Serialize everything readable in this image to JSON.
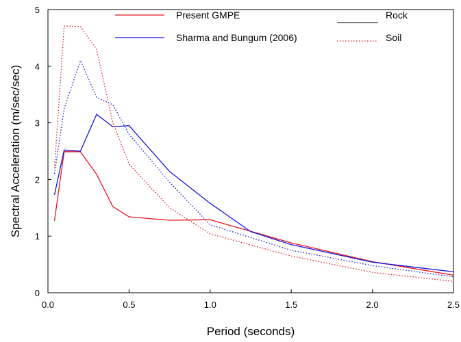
{
  "chart_data": {
    "type": "line",
    "xlabel": "Period (seconds)",
    "ylabel": "Spectral Acceleration (m/sec/sec)",
    "xlim": [
      0,
      2.5
    ],
    "ylim": [
      0,
      5
    ],
    "xticks": [
      0.0,
      0.5,
      1.0,
      1.5,
      2.0,
      2.5
    ],
    "xtick_labels": [
      "0.0",
      "0.5",
      "1.0",
      "1.5",
      "2.0",
      "2.5"
    ],
    "yticks": [
      0,
      1,
      2,
      3,
      4,
      5
    ],
    "ytick_labels": [
      "0",
      "1",
      "2",
      "3",
      "4",
      "5"
    ],
    "grid": false,
    "legend": {
      "placement": "top",
      "model_entries": [
        {
          "label": "Present GMPE",
          "color": "#e8141e",
          "dash": "solid"
        },
        {
          "label": "Sharma and Bungum (2006)",
          "color": "#1414e0",
          "dash": "solid"
        }
      ],
      "site_entries": [
        {
          "label": "Rock",
          "color": "#333333",
          "dash": "solid"
        },
        {
          "label": "Soil",
          "color": "#e8141e",
          "dash": "dotted"
        }
      ]
    },
    "series": [
      {
        "model": "Present GMPE",
        "site": "Rock",
        "color": "#e8141e",
        "dash": "solid",
        "x": [
          0.04,
          0.1,
          0.2,
          0.3,
          0.4,
          0.5,
          0.75,
          1.0,
          1.5,
          2.0,
          2.5
        ],
        "y": [
          1.27,
          2.49,
          2.49,
          2.09,
          1.52,
          1.34,
          1.28,
          1.29,
          0.88,
          0.55,
          0.31
        ]
      },
      {
        "model": "Sharma and Bungum (2006)",
        "site": "Rock",
        "color": "#1414e0",
        "dash": "solid",
        "x": [
          0.04,
          0.1,
          0.2,
          0.3,
          0.4,
          0.5,
          0.75,
          1.0,
          1.25,
          1.5,
          2.0,
          2.5
        ],
        "y": [
          1.73,
          2.52,
          2.5,
          3.15,
          2.93,
          2.95,
          2.14,
          1.58,
          1.08,
          0.85,
          0.54,
          0.37
        ]
      },
      {
        "model": "Present GMPE",
        "site": "Soil",
        "color": "#e8141e",
        "dash": "dotted",
        "x": [
          0.04,
          0.1,
          0.2,
          0.3,
          0.4,
          0.5,
          0.75,
          1.0,
          1.5,
          2.0,
          2.5
        ],
        "y": [
          2.2,
          4.71,
          4.7,
          4.3,
          3.0,
          2.27,
          1.5,
          1.04,
          0.65,
          0.36,
          0.2
        ]
      },
      {
        "model": "Sharma and Bungum (2006)",
        "site": "Soil",
        "color": "#1414e0",
        "dash": "dotted",
        "x": [
          0.04,
          0.1,
          0.2,
          0.3,
          0.4,
          0.5,
          0.75,
          1.0,
          1.5,
          2.0,
          2.5
        ],
        "y": [
          2.1,
          3.25,
          4.1,
          3.45,
          3.32,
          2.8,
          1.95,
          1.2,
          0.75,
          0.48,
          0.28
        ]
      }
    ]
  }
}
